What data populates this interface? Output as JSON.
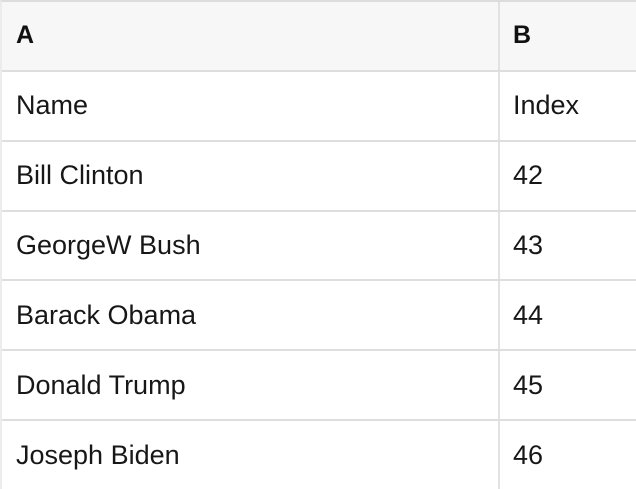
{
  "table": {
    "column_letters": [
      "A",
      "B"
    ],
    "rows": [
      [
        "Name",
        "Index"
      ],
      [
        "Bill Clinton",
        "42"
      ],
      [
        "GeorgeW Bush",
        "43"
      ],
      [
        "Barack Obama",
        "44"
      ],
      [
        "Donald Trump",
        "45"
      ],
      [
        "Joseph Biden",
        "46"
      ]
    ]
  },
  "colors": {
    "header_background": "#f7f7f7",
    "row_background": "#ffffff",
    "horizontal_border": "#dedede",
    "vertical_border": "#e2e2e2",
    "text": "#171717"
  }
}
